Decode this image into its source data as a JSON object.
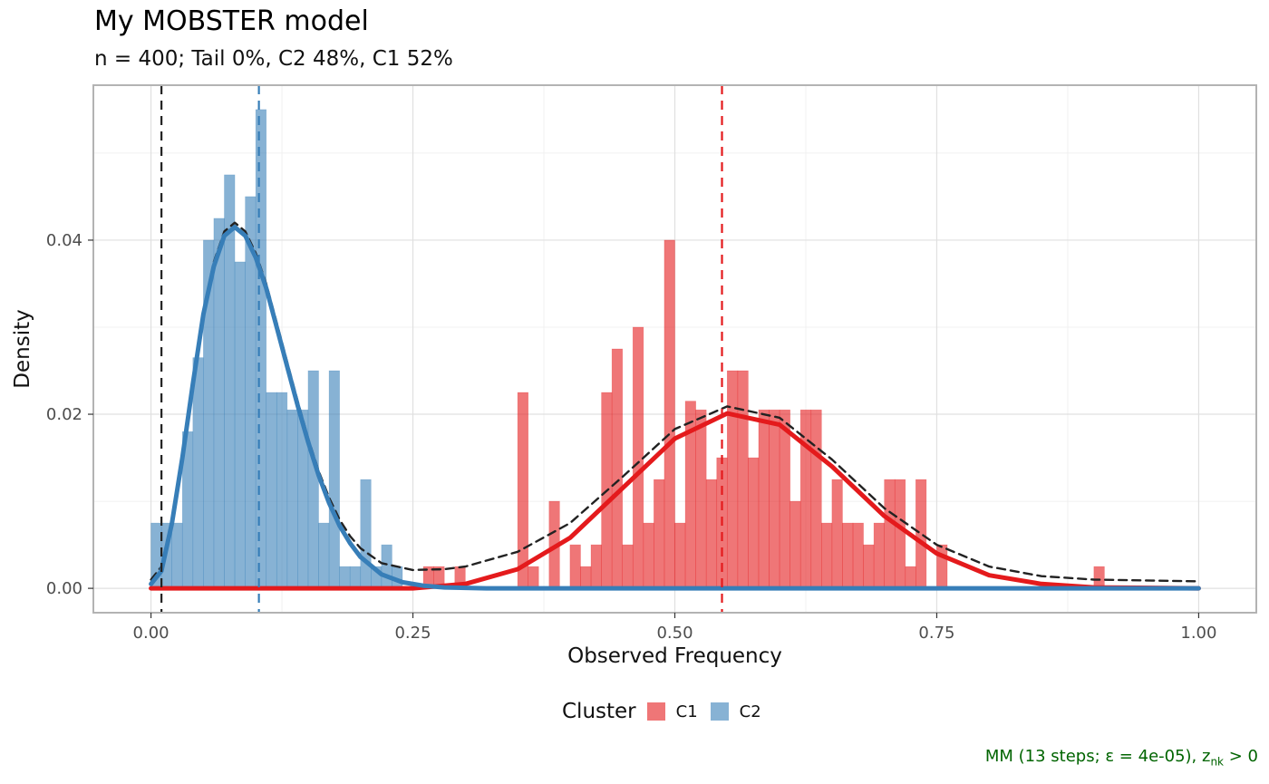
{
  "title": "My MOBSTER model",
  "subtitle": "n = 400; Tail 0%, C2 48%, C1 52%",
  "caption": {
    "main": "MM (13 steps; ε = 4e-05), z",
    "sub": "nk",
    "tail": " > 0"
  },
  "legend": {
    "title": "Cluster",
    "items": [
      {
        "label": "C1",
        "color": "#E41A1C"
      },
      {
        "label": "C2",
        "color": "#377EB8"
      }
    ]
  },
  "chart_data": {
    "type": "bar",
    "xlabel": "Observed Frequency",
    "ylabel": "Density",
    "xlim": [
      -0.055,
      1.055
    ],
    "ylim": [
      -0.0028,
      0.0578
    ],
    "x_ticks": [
      {
        "value": 0,
        "label": "0.00"
      },
      {
        "value": 0.25,
        "label": "0.25"
      },
      {
        "value": 0.5,
        "label": "0.50"
      },
      {
        "value": 0.75,
        "label": "0.75"
      },
      {
        "value": 1.0,
        "label": "1.00"
      }
    ],
    "y_ticks": [
      {
        "value": 0,
        "label": "0.00"
      },
      {
        "value": 0.02,
        "label": "0.02"
      },
      {
        "value": 0.04,
        "label": "0.04"
      }
    ],
    "bin_width": 0.01,
    "histogram": [
      {
        "cluster": "C2",
        "color": "#377EB8",
        "bins": [
          [
            0.005,
            0.0075
          ],
          [
            0.015,
            0.0075
          ],
          [
            0.025,
            0.0075
          ],
          [
            0.035,
            0.018
          ],
          [
            0.045,
            0.0265
          ],
          [
            0.055,
            0.04
          ],
          [
            0.065,
            0.0425
          ],
          [
            0.075,
            0.0475
          ],
          [
            0.085,
            0.0375
          ],
          [
            0.095,
            0.045
          ],
          [
            0.105,
            0.055
          ],
          [
            0.115,
            0.0225
          ],
          [
            0.125,
            0.0225
          ],
          [
            0.135,
            0.0205
          ],
          [
            0.145,
            0.0205
          ],
          [
            0.155,
            0.025
          ],
          [
            0.165,
            0.0075
          ],
          [
            0.175,
            0.025
          ],
          [
            0.185,
            0.0025
          ],
          [
            0.195,
            0.0025
          ],
          [
            0.205,
            0.0125
          ],
          [
            0.215,
            0.0025
          ],
          [
            0.225,
            0.005
          ],
          [
            0.235,
            0.0025
          ]
        ]
      },
      {
        "cluster": "C1",
        "color": "#E41A1C",
        "bins": [
          [
            0.265,
            0.0025
          ],
          [
            0.275,
            0.0025
          ],
          [
            0.295,
            0.0025
          ],
          [
            0.355,
            0.0225
          ],
          [
            0.365,
            0.0025
          ],
          [
            0.385,
            0.01
          ],
          [
            0.405,
            0.005
          ],
          [
            0.415,
            0.0025
          ],
          [
            0.425,
            0.005
          ],
          [
            0.435,
            0.0225
          ],
          [
            0.445,
            0.0275
          ],
          [
            0.455,
            0.005
          ],
          [
            0.465,
            0.03
          ],
          [
            0.475,
            0.0075
          ],
          [
            0.485,
            0.0125
          ],
          [
            0.495,
            0.04
          ],
          [
            0.505,
            0.0075
          ],
          [
            0.515,
            0.0215
          ],
          [
            0.525,
            0.0205
          ],
          [
            0.535,
            0.0125
          ],
          [
            0.545,
            0.015
          ],
          [
            0.555,
            0.025
          ],
          [
            0.565,
            0.025
          ],
          [
            0.575,
            0.015
          ],
          [
            0.585,
            0.0205
          ],
          [
            0.595,
            0.0205
          ],
          [
            0.605,
            0.0205
          ],
          [
            0.615,
            0.01
          ],
          [
            0.625,
            0.0205
          ],
          [
            0.635,
            0.0205
          ],
          [
            0.645,
            0.0075
          ],
          [
            0.655,
            0.0125
          ],
          [
            0.665,
            0.0075
          ],
          [
            0.675,
            0.0075
          ],
          [
            0.685,
            0.005
          ],
          [
            0.695,
            0.0075
          ],
          [
            0.705,
            0.0125
          ],
          [
            0.715,
            0.0125
          ],
          [
            0.725,
            0.0025
          ],
          [
            0.735,
            0.0125
          ],
          [
            0.755,
            0.005
          ],
          [
            0.905,
            0.0025
          ]
        ]
      }
    ],
    "curves": [
      {
        "cluster": "C2",
        "color": "#377EB8",
        "style": "solid",
        "points": [
          [
            0.0,
            0.0005
          ],
          [
            0.01,
            0.002
          ],
          [
            0.02,
            0.0075
          ],
          [
            0.03,
            0.015
          ],
          [
            0.04,
            0.0235
          ],
          [
            0.05,
            0.0315
          ],
          [
            0.06,
            0.037
          ],
          [
            0.07,
            0.0405
          ],
          [
            0.08,
            0.0415
          ],
          [
            0.09,
            0.0405
          ],
          [
            0.1,
            0.038
          ],
          [
            0.11,
            0.0345
          ],
          [
            0.12,
            0.03
          ],
          [
            0.13,
            0.0255
          ],
          [
            0.14,
            0.021
          ],
          [
            0.15,
            0.0168
          ],
          [
            0.16,
            0.013
          ],
          [
            0.17,
            0.0098
          ],
          [
            0.18,
            0.0072
          ],
          [
            0.19,
            0.0052
          ],
          [
            0.2,
            0.0036
          ],
          [
            0.22,
            0.0016
          ],
          [
            0.24,
            0.0007
          ],
          [
            0.26,
            0.0003
          ],
          [
            0.28,
            0.0001
          ],
          [
            0.32,
            0.0
          ],
          [
            1.0,
            0.0
          ]
        ]
      },
      {
        "cluster": "C1",
        "color": "#E41A1C",
        "style": "solid",
        "points": [
          [
            0.0,
            0.0
          ],
          [
            0.25,
            0.0
          ],
          [
            0.3,
            0.0005
          ],
          [
            0.35,
            0.0022
          ],
          [
            0.4,
            0.0058
          ],
          [
            0.45,
            0.0115
          ],
          [
            0.5,
            0.0172
          ],
          [
            0.55,
            0.0201
          ],
          [
            0.6,
            0.0188
          ],
          [
            0.65,
            0.014
          ],
          [
            0.7,
            0.0083
          ],
          [
            0.75,
            0.004
          ],
          [
            0.8,
            0.0015
          ],
          [
            0.85,
            0.0005
          ],
          [
            0.9,
            0.0001
          ],
          [
            1.0,
            0.0
          ]
        ]
      },
      {
        "cluster": "mixture",
        "color": "#222222",
        "style": "dashed",
        "points": [
          [
            0.0,
            0.001
          ],
          [
            0.01,
            0.0025
          ],
          [
            0.02,
            0.008
          ],
          [
            0.03,
            0.0155
          ],
          [
            0.04,
            0.024
          ],
          [
            0.05,
            0.032
          ],
          [
            0.06,
            0.0375
          ],
          [
            0.07,
            0.041
          ],
          [
            0.08,
            0.042
          ],
          [
            0.09,
            0.041
          ],
          [
            0.1,
            0.0385
          ],
          [
            0.11,
            0.035
          ],
          [
            0.12,
            0.0305
          ],
          [
            0.13,
            0.026
          ],
          [
            0.14,
            0.0215
          ],
          [
            0.15,
            0.0172
          ],
          [
            0.16,
            0.0135
          ],
          [
            0.17,
            0.0104
          ],
          [
            0.18,
            0.0079
          ],
          [
            0.19,
            0.006
          ],
          [
            0.2,
            0.0046
          ],
          [
            0.22,
            0.0029
          ],
          [
            0.25,
            0.0021
          ],
          [
            0.28,
            0.0022
          ],
          [
            0.3,
            0.0025
          ],
          [
            0.35,
            0.0042
          ],
          [
            0.4,
            0.0075
          ],
          [
            0.45,
            0.0128
          ],
          [
            0.5,
            0.0183
          ],
          [
            0.55,
            0.0209
          ],
          [
            0.6,
            0.0196
          ],
          [
            0.65,
            0.0148
          ],
          [
            0.7,
            0.0092
          ],
          [
            0.75,
            0.005
          ],
          [
            0.8,
            0.0025
          ],
          [
            0.85,
            0.0014
          ],
          [
            0.9,
            0.001
          ],
          [
            1.0,
            0.0008
          ]
        ]
      }
    ],
    "vlines": [
      {
        "x": 0.01,
        "color": "#222222"
      },
      {
        "x": 0.103,
        "color": "#377EB8"
      },
      {
        "x": 0.545,
        "color": "#E41A1C"
      }
    ],
    "grid": true,
    "legend_position": "bottom"
  }
}
